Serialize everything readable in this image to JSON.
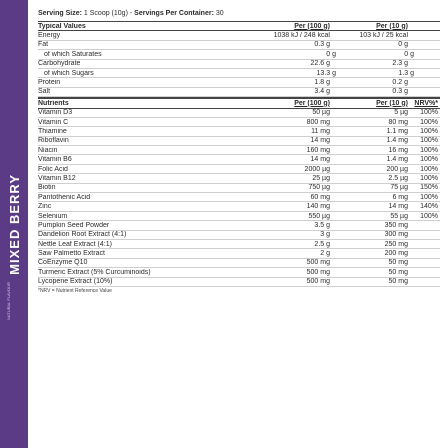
{
  "brand": {
    "name": "MIXED BERRY",
    "tagline": "NATURAL FLAVOUR",
    "color": "#5b3a86"
  },
  "serving": {
    "size_label": "Serving Size:",
    "size_value": "1 Scoop (10g)",
    "sep": "-",
    "servings_label": "Servings Per Container:",
    "servings_value": "30"
  },
  "typical": {
    "title": "Typical Values",
    "col1": "Per (100 g)",
    "col2": "Per (10 g)",
    "rows": [
      {
        "name": "Energy",
        "v1": "1038 kJ / 248 kcal",
        "v2": "103 kJ / 25 kcal",
        "indent": false
      },
      {
        "name": "Fat",
        "v1": "0.3 g",
        "v2": "0 g",
        "indent": false
      },
      {
        "name": "of which Saturates",
        "v1": "0 g",
        "v2": "0 g",
        "indent": true
      },
      {
        "name": "Carbohydrate",
        "v1": "22.6 g",
        "v2": "2.3 g",
        "indent": false
      },
      {
        "name": "of which Sugars",
        "v1": "13.3 g",
        "v2": "1.3 g",
        "indent": true
      },
      {
        "name": "Protein",
        "v1": "1.8 g",
        "v2": "0.2 g",
        "indent": false
      },
      {
        "name": "Salt",
        "v1": "3.4 g",
        "v2": "0.3 g",
        "indent": false
      }
    ]
  },
  "nutrients": {
    "title": "Nutrients",
    "col1": "Per (100 g)",
    "col2": "Per (10 g)",
    "col3": "NRV%*",
    "rows": [
      {
        "name": "Vitamin D3",
        "v1": "50 µg",
        "v2": "5 µg",
        "v3": "100%"
      },
      {
        "name": "Vitamin C",
        "v1": "800 mg",
        "v2": "80 mg",
        "v3": "100%"
      },
      {
        "name": "Thiamine",
        "v1": "11 mg",
        "v2": "1.1 mg",
        "v3": "100%"
      },
      {
        "name": "Riboflavin",
        "v1": "14 mg",
        "v2": "1.4 mg",
        "v3": "100%"
      },
      {
        "name": "Niacin",
        "v1": "160 mg",
        "v2": "16 mg",
        "v3": "100%"
      },
      {
        "name": "Vitamin B6",
        "v1": "14 mg",
        "v2": "1.4 mg",
        "v3": "100%"
      },
      {
        "name": "Folic Acid",
        "v1": "2000 µg",
        "v2": "200 µg",
        "v3": "100%"
      },
      {
        "name": "Vitamin B12",
        "v1": "25 µg",
        "v2": "2.5 µg",
        "v3": "100%"
      },
      {
        "name": "Biotin",
        "v1": "750 µg",
        "v2": "75 µg",
        "v3": "150%"
      },
      {
        "name": "Pantothenic Acid",
        "v1": "60 mg",
        "v2": "6 mg",
        "v3": "100%"
      },
      {
        "name": "Zinc",
        "v1": "140 mg",
        "v2": "14 mg",
        "v3": "140%"
      },
      {
        "name": "Selenium",
        "v1": "550 µg",
        "v2": "55 µg",
        "v3": "100%"
      },
      {
        "name": "Pumpkin Seed Powder",
        "v1": "3.5 g",
        "v2": "350 mg",
        "v3": ""
      },
      {
        "name": "Dandelion Root Extract (4:1)",
        "v1": "3 g",
        "v2": "300 mg",
        "v3": ""
      },
      {
        "name": "Nettle Leaf Extract (4:1)",
        "v1": "2.5 g",
        "v2": "250 mg",
        "v3": ""
      },
      {
        "name": "Saw Palmetto Extract",
        "v1": "2 g",
        "v2": "200 mg",
        "v3": ""
      },
      {
        "name": "CoEnzyme Q10",
        "v1": "500 mg",
        "v2": "50 mg",
        "v3": ""
      },
      {
        "name": "Turmeric Extract (5% Curcuminoids)",
        "v1": "500 mg",
        "v2": "50 mg",
        "v3": ""
      },
      {
        "name": "Lycopene Extract (10%)",
        "v1": "500 mg",
        "v2": "50 mg",
        "v3": ""
      }
    ]
  },
  "footnote": "*NRV = Nutrient Reference Value"
}
